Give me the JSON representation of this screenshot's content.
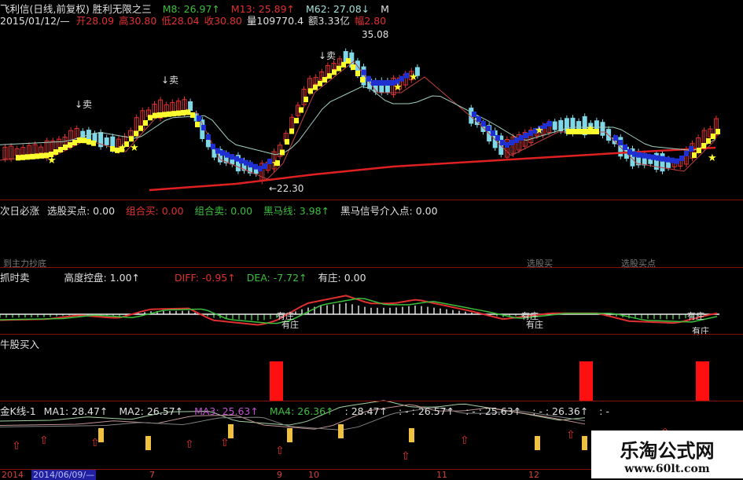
{
  "main": {
    "title": "飞利信(日线,前复权) 胜利无限之三",
    "m8": "M8: 26.97↑",
    "m13": "M13: 25.89↑",
    "m62": "M62: 27.08↓",
    "m_more": "M",
    "date": "2015/01/12/—",
    "open": "开28.09",
    "high": "高30.80",
    "low": "低28.04",
    "close": "收30.80",
    "volume": "量109770.4",
    "amount": "额3.33亿",
    "change": "幅2.80",
    "sell_labels": [
      "↓卖",
      "↓卖",
      "↓卖"
    ],
    "high_mark": "35.08",
    "low_mark": "←22.30"
  },
  "panel2": {
    "name": "次日必涨",
    "items": [
      "选股买点: 0.00",
      "组合买: 0.00",
      "组合卖: 0.00",
      "黑马线: 3.98↑",
      "黑马信号介入点: 0.00"
    ],
    "bottom_labels": [
      "到主力抄底",
      "选股买",
      "选股买点"
    ]
  },
  "panel3": {
    "name": "抓时卖",
    "items": [
      "高度控盘: 1.00↑",
      "DIFF: -0.95↑",
      "DEA: -7.72↑",
      "有庄: 0.00"
    ],
    "markers": [
      "有庄",
      "有庄",
      "有庄",
      "有庄",
      "有庄",
      "有庄"
    ]
  },
  "panel4": {
    "name": "牛股买入"
  },
  "panel5": {
    "name": "金K线-1",
    "items": [
      "MA1: 28.47↑",
      "MA2: 26.57↑",
      "MA3: 25.63↑",
      "MA4: 26.36↑",
      ": 28.47↑",
      ": - : 26.57↑",
      ": - : 25.63↑",
      ": - : 26.36↑",
      ": -"
    ]
  },
  "axis": {
    "labels": [
      "2014",
      "2014/06/09/—",
      "7",
      "9",
      "10",
      "11",
      "12"
    ]
  },
  "watermark": {
    "title": "乐淘公式网",
    "url": "www.60lt.com"
  },
  "colors": {
    "up": "#e03030",
    "down": "#7fd8e8",
    "signal": "#ffff30",
    "blue_band": "#2030d0",
    "ma_long": "#e02020",
    "bar": "#ff1010"
  }
}
